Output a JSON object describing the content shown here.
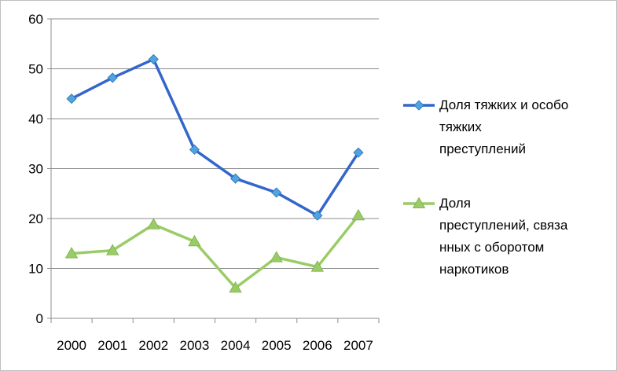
{
  "chart_data": {
    "type": "line",
    "x": [
      "2000",
      "2001",
      "2002",
      "2003",
      "2004",
      "2005",
      "2006",
      "2007"
    ],
    "ylim": [
      0,
      60
    ],
    "yticks": [
      "0",
      "10",
      "20",
      "30",
      "40",
      "50",
      "60"
    ],
    "grid": true,
    "legend_position": "right",
    "series": [
      {
        "name": "Доля тяжких и особо тяжких преступлений",
        "name_lines": [
          "Доля тяжких и особо",
          "тяжких",
          "преступлений"
        ],
        "values": [
          44.0,
          48.2,
          51.9,
          33.8,
          28.0,
          25.2,
          20.6,
          33.2
        ],
        "color": "#3366cc",
        "marker_color": "#4ea3e0",
        "marker": "diamond"
      },
      {
        "name": "Доля преступлений, связанных с оборотом наркотиков",
        "name_lines": [
          "Доля",
          "преступлений, связа",
          "нных с оборотом",
          "наркотиков"
        ],
        "values": [
          13.0,
          13.6,
          18.8,
          15.4,
          6.1,
          12.2,
          10.3,
          20.6
        ],
        "color": "#99cc66",
        "marker_color": "#99cc66",
        "marker": "triangle"
      }
    ]
  }
}
